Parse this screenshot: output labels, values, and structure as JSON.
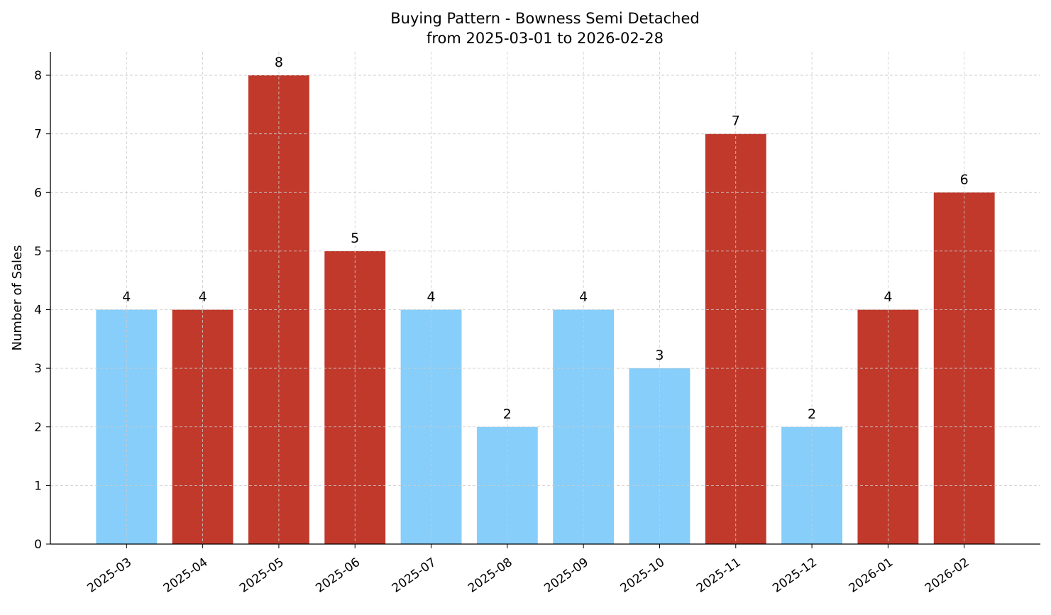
{
  "chart_data": {
    "type": "bar",
    "title": "Buying Pattern - Bowness Semi Detached",
    "subtitle": "from 2025-03-01 to 2026-02-28",
    "xlabel": "",
    "ylabel": "Number of Sales",
    "categories": [
      "2025-03",
      "2025-04",
      "2025-05",
      "2025-06",
      "2025-07",
      "2025-08",
      "2025-09",
      "2025-10",
      "2025-11",
      "2025-12",
      "2026-01",
      "2026-02"
    ],
    "values": [
      4,
      4,
      8,
      5,
      4,
      2,
      4,
      3,
      7,
      2,
      4,
      6
    ],
    "bar_colors": [
      "#87CEFA",
      "#C0392B",
      "#C0392B",
      "#C0392B",
      "#87CEFA",
      "#87CEFA",
      "#87CEFA",
      "#87CEFA",
      "#C0392B",
      "#87CEFA",
      "#C0392B",
      "#C0392B"
    ],
    "ylim": [
      0,
      8.4
    ],
    "yticks": [
      0,
      1,
      2,
      3,
      4,
      5,
      6,
      7,
      8
    ],
    "grid": true,
    "data_labels": true
  }
}
